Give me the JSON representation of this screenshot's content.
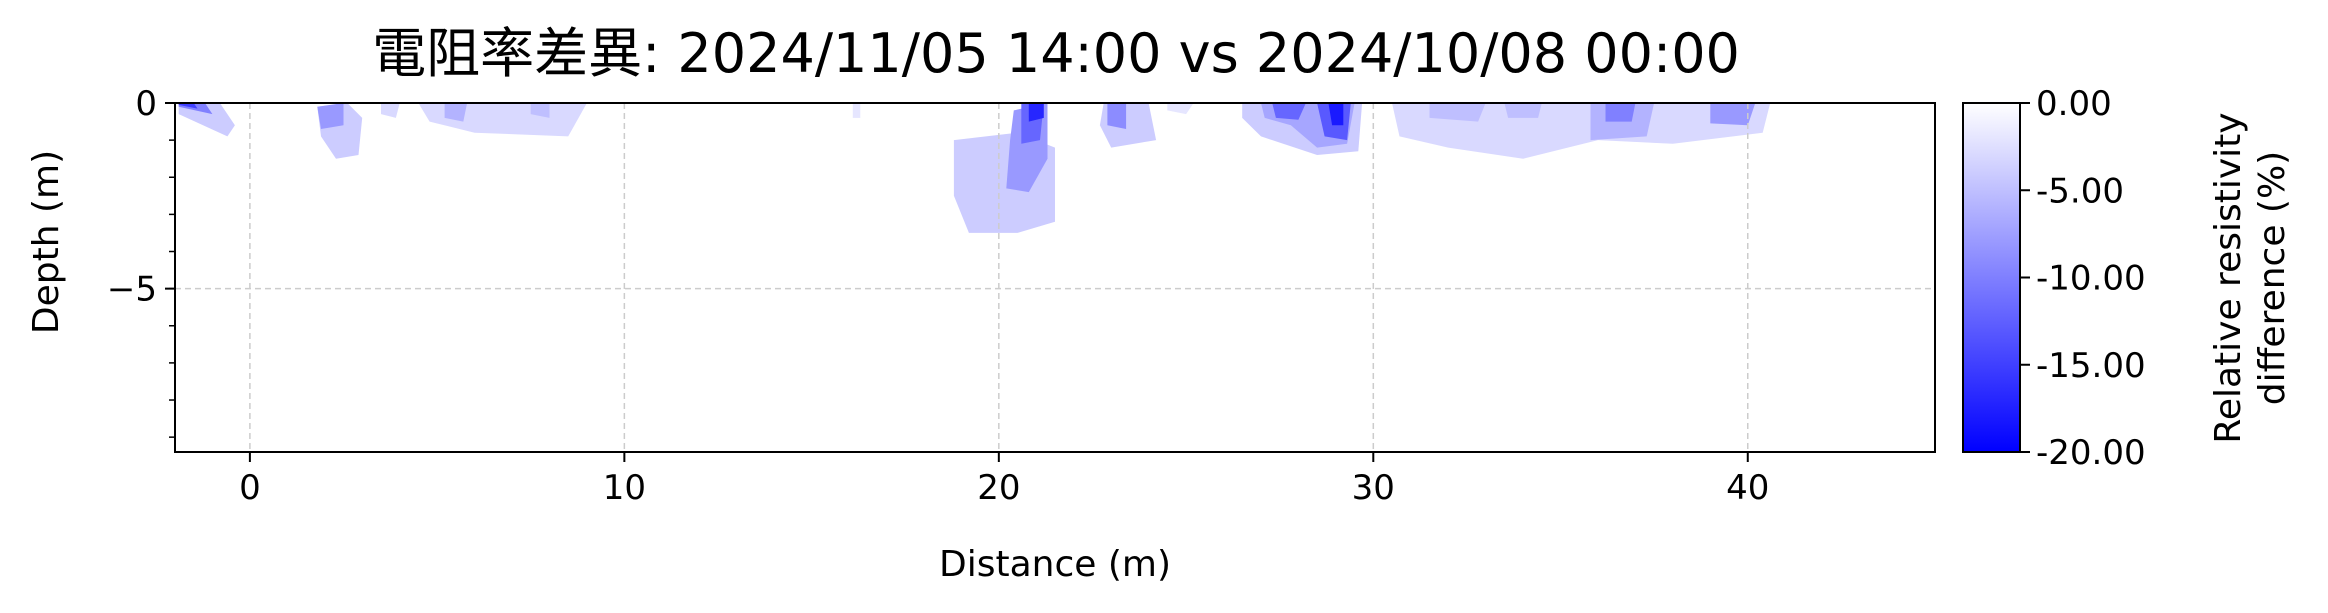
{
  "chart_data": {
    "type": "heatmap",
    "title": "電阻率差異: 2024/11/05 14:00 vs 2024/10/08 00:00",
    "xlabel": "Distance (m)",
    "ylabel": "Depth (m)",
    "xlim": [
      -2,
      45
    ],
    "ylim": [
      -9.4,
      0
    ],
    "x_ticks": [
      0,
      10,
      20,
      30,
      40
    ],
    "x_tick_labels": [
      "0",
      "10",
      "20",
      "30",
      "40"
    ],
    "y_ticks": [
      0,
      -5
    ],
    "y_tick_labels": [
      "0",
      "−5"
    ],
    "grid": true,
    "colorbar": {
      "label_lines": [
        "Relative resistivity",
        "difference (%)"
      ],
      "range": [
        -20,
        0
      ],
      "ticks": [
        0,
        -5,
        -10,
        -15,
        -20
      ],
      "tick_labels": [
        "0.00",
        "-5.00",
        "-10.00",
        "-15.00",
        "-20.00"
      ],
      "color_min": "#0000ff",
      "color_max": "#ffffff"
    },
    "anomalies": [
      {
        "polygon": [
          [
            -1.9,
            0
          ],
          [
            -0.8,
            0
          ],
          [
            -0.4,
            -0.6
          ],
          [
            -0.6,
            -0.9
          ],
          [
            -1.9,
            -0.3
          ]
        ],
        "value": -4
      },
      {
        "polygon": [
          [
            -1.9,
            0
          ],
          [
            -1.2,
            0
          ],
          [
            -1.0,
            -0.3
          ],
          [
            -1.9,
            -0.1
          ]
        ],
        "value": -10
      },
      {
        "polygon": [
          [
            -1.9,
            0
          ],
          [
            -1.5,
            0
          ],
          [
            -1.4,
            -0.15
          ],
          [
            -1.9,
            -0.05
          ]
        ],
        "value": -15
      },
      {
        "polygon": [
          [
            1.8,
            -0.1
          ],
          [
            2.6,
            0
          ],
          [
            3.0,
            -0.4
          ],
          [
            2.9,
            -1.4
          ],
          [
            2.3,
            -1.5
          ],
          [
            1.9,
            -0.9
          ]
        ],
        "value": -4
      },
      {
        "polygon": [
          [
            1.8,
            -0.1
          ],
          [
            2.5,
            0
          ],
          [
            2.5,
            -0.6
          ],
          [
            1.9,
            -0.7
          ]
        ],
        "value": -8
      },
      {
        "polygon": [
          [
            3.5,
            0
          ],
          [
            4.0,
            0
          ],
          [
            3.9,
            -0.4
          ],
          [
            3.5,
            -0.3
          ]
        ],
        "value": -3
      },
      {
        "polygon": [
          [
            4.5,
            0
          ],
          [
            9.0,
            0
          ],
          [
            8.5,
            -0.9
          ],
          [
            6.0,
            -0.8
          ],
          [
            4.8,
            -0.5
          ]
        ],
        "value": -3
      },
      {
        "polygon": [
          [
            5.2,
            0
          ],
          [
            5.8,
            0
          ],
          [
            5.7,
            -0.5
          ],
          [
            5.2,
            -0.4
          ]
        ],
        "value": -6
      },
      {
        "polygon": [
          [
            7.5,
            0
          ],
          [
            8.0,
            0
          ],
          [
            8.0,
            -0.4
          ],
          [
            7.5,
            -0.3
          ]
        ],
        "value": -5
      },
      {
        "polygon": [
          [
            16.1,
            0
          ],
          [
            16.3,
            0
          ],
          [
            16.3,
            -0.4
          ],
          [
            16.1,
            -0.4
          ]
        ],
        "value": -2
      },
      {
        "polygon": [
          [
            18.8,
            -1.0
          ],
          [
            20.5,
            -0.8
          ],
          [
            21.5,
            -1.2
          ],
          [
            21.5,
            -3.2
          ],
          [
            20.5,
            -3.5
          ],
          [
            19.2,
            -3.5
          ],
          [
            18.8,
            -2.5
          ]
        ],
        "value": -4
      },
      {
        "polygon": [
          [
            20.4,
            -0.2
          ],
          [
            21.3,
            0
          ],
          [
            21.3,
            -1.5
          ],
          [
            20.8,
            -2.4
          ],
          [
            20.2,
            -2.3
          ],
          [
            20.3,
            -1.0
          ]
        ],
        "value": -8
      },
      {
        "polygon": [
          [
            20.6,
            0
          ],
          [
            21.2,
            0
          ],
          [
            21.1,
            -1.0
          ],
          [
            20.6,
            -1.1
          ]
        ],
        "value": -12
      },
      {
        "polygon": [
          [
            20.8,
            0
          ],
          [
            21.2,
            0
          ],
          [
            21.2,
            -0.4
          ],
          [
            20.8,
            -0.5
          ]
        ],
        "value": -17
      },
      {
        "polygon": [
          [
            22.8,
            0
          ],
          [
            24.0,
            0
          ],
          [
            24.2,
            -1.0
          ],
          [
            23.0,
            -1.2
          ],
          [
            22.7,
            -0.6
          ]
        ],
        "value": -4
      },
      {
        "polygon": [
          [
            22.9,
            0
          ],
          [
            23.4,
            0
          ],
          [
            23.4,
            -0.7
          ],
          [
            22.9,
            -0.6
          ]
        ],
        "value": -9
      },
      {
        "polygon": [
          [
            24.5,
            0
          ],
          [
            25.2,
            0
          ],
          [
            25.0,
            -0.3
          ],
          [
            24.5,
            -0.2
          ]
        ],
        "value": -2
      },
      {
        "polygon": [
          [
            26.5,
            0
          ],
          [
            29.7,
            0
          ],
          [
            29.6,
            -1.3
          ],
          [
            28.5,
            -1.4
          ],
          [
            27.0,
            -0.9
          ],
          [
            26.5,
            -0.4
          ]
        ],
        "value": -4
      },
      {
        "polygon": [
          [
            27.0,
            0
          ],
          [
            29.5,
            0
          ],
          [
            29.3,
            -1.1
          ],
          [
            28.5,
            -1.2
          ],
          [
            27.8,
            -0.6
          ],
          [
            27.1,
            -0.4
          ]
        ],
        "value": -7
      },
      {
        "polygon": [
          [
            27.3,
            0
          ],
          [
            28.2,
            0
          ],
          [
            28.0,
            -0.45
          ],
          [
            27.4,
            -0.4
          ]
        ],
        "value": -12
      },
      {
        "polygon": [
          [
            28.5,
            0
          ],
          [
            29.4,
            0
          ],
          [
            29.3,
            -1.0
          ],
          [
            28.7,
            -0.9
          ]
        ],
        "value": -13
      },
      {
        "polygon": [
          [
            28.8,
            0
          ],
          [
            29.2,
            0
          ],
          [
            29.2,
            -0.6
          ],
          [
            28.9,
            -0.6
          ]
        ],
        "value": -18
      },
      {
        "polygon": [
          [
            30.5,
            0
          ],
          [
            40.6,
            0
          ],
          [
            40.4,
            -0.8
          ],
          [
            38.0,
            -1.1
          ],
          [
            36.0,
            -1.0
          ],
          [
            34.0,
            -1.5
          ],
          [
            32.0,
            -1.2
          ],
          [
            30.7,
            -0.9
          ]
        ],
        "value": -3
      },
      {
        "polygon": [
          [
            31.5,
            0
          ],
          [
            33.0,
            0
          ],
          [
            32.8,
            -0.5
          ],
          [
            31.5,
            -0.4
          ]
        ],
        "value": -5
      },
      {
        "polygon": [
          [
            33.5,
            0
          ],
          [
            34.5,
            0
          ],
          [
            34.4,
            -0.4
          ],
          [
            33.6,
            -0.4
          ]
        ],
        "value": -5
      },
      {
        "polygon": [
          [
            35.8,
            0
          ],
          [
            37.5,
            0
          ],
          [
            37.3,
            -0.9
          ],
          [
            35.8,
            -1.0
          ]
        ],
        "value": -6
      },
      {
        "polygon": [
          [
            36.2,
            0
          ],
          [
            37.0,
            0
          ],
          [
            36.9,
            -0.5
          ],
          [
            36.2,
            -0.5
          ]
        ],
        "value": -10
      },
      {
        "polygon": [
          [
            39.0,
            0
          ],
          [
            40.2,
            0
          ],
          [
            40.0,
            -0.6
          ],
          [
            39.0,
            -0.55
          ]
        ],
        "value": -8
      }
    ]
  }
}
